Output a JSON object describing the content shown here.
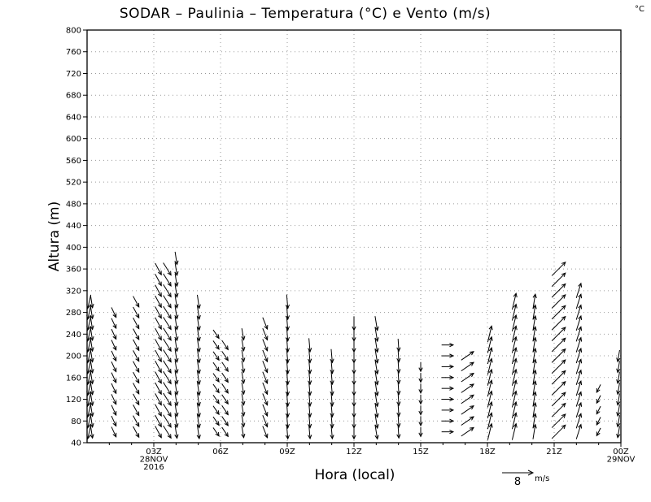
{
  "title": "SODAR – Paulinia – Temperatura (°C) e Vento (m/s)",
  "corner_unit": "°C",
  "legend": {
    "value": "8",
    "unit": "m/s"
  },
  "chart_data": {
    "type": "wind-barb-arrows",
    "title": "SODAR – Paulinia – Temperatura (°C) e Vento (m/s)",
    "xlabel": "Hora (local)",
    "ylabel": "Altura (m)",
    "ylim": [
      40,
      800
    ],
    "y_ticks": [
      40,
      80,
      120,
      160,
      200,
      240,
      280,
      320,
      360,
      400,
      440,
      480,
      520,
      560,
      600,
      640,
      680,
      720,
      760,
      800
    ],
    "xlim_hours": [
      0,
      24
    ],
    "x_ticks": [
      {
        "hour": 3,
        "lines": [
          "03Z",
          "28NOV",
          "2016"
        ]
      },
      {
        "hour": 6,
        "lines": [
          "06Z"
        ]
      },
      {
        "hour": 9,
        "lines": [
          "09Z"
        ]
      },
      {
        "hour": 12,
        "lines": [
          "12Z"
        ]
      },
      {
        "hour": 15,
        "lines": [
          "15Z"
        ]
      },
      {
        "hour": 18,
        "lines": [
          "18Z"
        ]
      },
      {
        "hour": 21,
        "lines": [
          "21Z"
        ]
      },
      {
        "hour": 24,
        "lines": [
          "00Z",
          "29NOV"
        ]
      }
    ],
    "grid": true,
    "wind_reference": {
      "speed": 8,
      "unit": "m/s"
    },
    "wind_profiles": [
      {
        "hour": 0.1,
        "top": 300,
        "u": -0.8,
        "v": -3.5
      },
      {
        "hour": 0.2,
        "top": 300,
        "u": 0.5,
        "v": -3.2
      },
      {
        "hour": 1.2,
        "top": 280,
        "u": 1.2,
        "v": -2.6
      },
      {
        "hour": 2.2,
        "top": 300,
        "u": 1.5,
        "v": -2.8
      },
      {
        "hour": 3.2,
        "top": 360,
        "u": 1.6,
        "v": -3.0
      },
      {
        "hour": 3.6,
        "top": 360,
        "u": 2.0,
        "v": -3.2
      },
      {
        "hour": 4.0,
        "top": 380,
        "u": 0.5,
        "v": -3.3
      },
      {
        "hour": 5.0,
        "top": 300,
        "u": 0.5,
        "v": -3.5
      },
      {
        "hour": 5.8,
        "top": 240,
        "u": 1.5,
        "v": -2.2
      },
      {
        "hour": 6.2,
        "top": 220,
        "u": 1.6,
        "v": -2.4
      },
      {
        "hour": 7.0,
        "top": 240,
        "u": 0.5,
        "v": -3.0
      },
      {
        "hour": 8.0,
        "top": 260,
        "u": 1.2,
        "v": -3.0
      },
      {
        "hour": 9.0,
        "top": 300,
        "u": 0.3,
        "v": -3.6
      },
      {
        "hour": 10.0,
        "top": 220,
        "u": 0.3,
        "v": -3.5
      },
      {
        "hour": 11.0,
        "top": 200,
        "u": 0.3,
        "v": -3.5
      },
      {
        "hour": 12.0,
        "top": 260,
        "u": 0.0,
        "v": -3.6
      },
      {
        "hour": 13.0,
        "top": 260,
        "u": 0.6,
        "v": -3.7
      },
      {
        "hour": 14.0,
        "top": 220,
        "u": 0.2,
        "v": -3.2
      },
      {
        "hour": 15.0,
        "top": 180,
        "u": 0.0,
        "v": -2.4
      },
      {
        "hour": 16.2,
        "top": 220,
        "u": 3.0,
        "v": 0.0
      },
      {
        "hour": 17.1,
        "top": 200,
        "u": 3.2,
        "v": 2.2
      },
      {
        "hour": 18.1,
        "top": 240,
        "u": 1.0,
        "v": 4.2
      },
      {
        "hour": 19.2,
        "top": 300,
        "u": 1.0,
        "v": 4.2
      },
      {
        "hour": 20.1,
        "top": 300,
        "u": 0.6,
        "v": 3.8
      },
      {
        "hour": 21.2,
        "top": 360,
        "u": 3.5,
        "v": 3.5
      },
      {
        "hour": 22.1,
        "top": 320,
        "u": 1.2,
        "v": 3.8
      },
      {
        "hour": 23.0,
        "top": 140,
        "u": -1.0,
        "v": -2.0
      },
      {
        "hour": 23.9,
        "top": 200,
        "u": -0.5,
        "v": -3.0
      }
    ]
  }
}
